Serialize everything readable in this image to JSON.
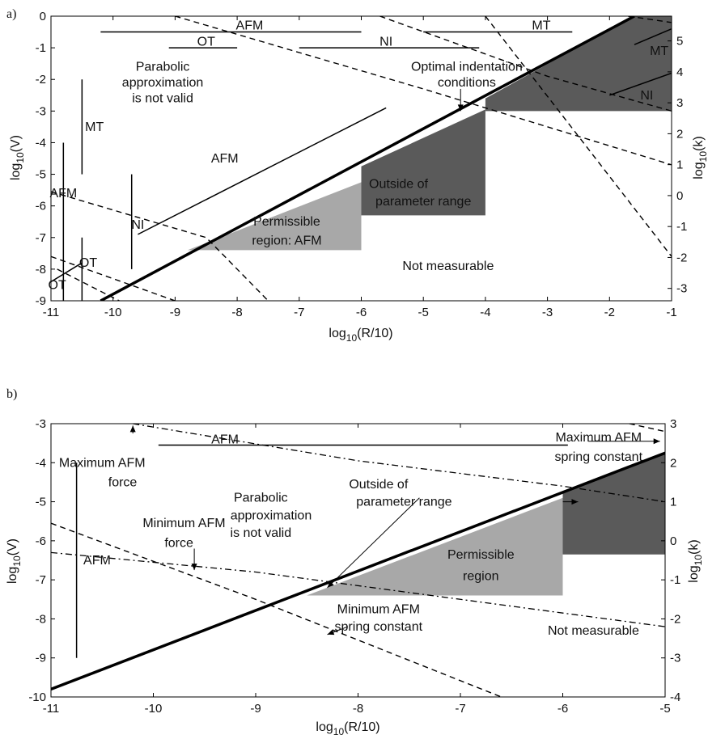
{
  "colors": {
    "axis": "#000000",
    "dark_region": "#5a5a5a",
    "light_region": "#a8a8a8",
    "line": "#000000"
  },
  "chart_data": [
    {
      "panel_label": "a)",
      "type": "line",
      "xlabel": "log10(R/10)",
      "ylabel": "log10(V)",
      "y2label": "log10(k)",
      "xlim": [
        -11,
        -1
      ],
      "ylim": [
        -9,
        0
      ],
      "y2lim": [
        -3.4,
        5.8
      ],
      "xticks": [
        -11,
        -10,
        -9,
        -8,
        -7,
        -6,
        -5,
        -4,
        -3,
        -2,
        -1
      ],
      "yticks": [
        -9,
        -8,
        -7,
        -6,
        -5,
        -4,
        -3,
        -2,
        -1,
        0
      ],
      "y2ticks": [
        -3,
        -2,
        -1,
        0,
        1,
        2,
        3,
        4,
        5
      ],
      "grid": false,
      "regions": [
        {
          "name": "Permissible region: AFM",
          "shade": "light",
          "polygon": [
            [
              -8.8,
              -7.4
            ],
            [
              -6.0,
              -7.4
            ],
            [
              -6.0,
              -5.25
            ]
          ]
        },
        {
          "name": "Outside of parameter range",
          "shade": "dark",
          "polygon": [
            [
              -6.0,
              -6.3
            ],
            [
              -4.0,
              -6.3
            ],
            [
              -4.0,
              -2.95
            ],
            [
              -6.0,
              -4.75
            ]
          ]
        },
        {
          "name": "Optimal indentation conditions",
          "shade": "dark",
          "polygon": [
            [
              -4.0,
              -3.0
            ],
            [
              -1.0,
              -3.0
            ],
            [
              -1.0,
              0.0
            ],
            [
              -1.6,
              0.0
            ],
            [
              -4.0,
              -2.6
            ]
          ]
        }
      ],
      "series": [
        {
          "style": "thick",
          "points": [
            [
              -10.2,
              -9.0
            ],
            [
              -1.6,
              0.0
            ]
          ]
        },
        {
          "style": "thin",
          "points": [
            [
              -9.6,
              -6.9
            ],
            [
              -5.6,
              -2.9
            ]
          ]
        },
        {
          "style": "dashed",
          "points": [
            [
              -11.0,
              -5.55
            ],
            [
              -8.5,
              -7.0
            ],
            [
              -7.5,
              -9.0
            ]
          ]
        },
        {
          "style": "dashed",
          "points": [
            [
              -11.0,
              -7.6
            ],
            [
              -9.0,
              -9.0
            ]
          ]
        },
        {
          "style": "dashed",
          "points": [
            [
              -9.0,
              0.0
            ],
            [
              -5.0,
              -2.3
            ],
            [
              -1.0,
              -4.7
            ]
          ]
        },
        {
          "style": "dashed",
          "points": [
            [
              -5.7,
              0.0
            ],
            [
              -3.0,
              -1.9
            ],
            [
              -1.0,
              -3.0
            ]
          ]
        },
        {
          "style": "dashed",
          "points": [
            [
              -1.7,
              0.0
            ],
            [
              -1.0,
              -0.2
            ]
          ]
        },
        {
          "style": "dashed",
          "points": [
            [
              -4.0,
              0.0
            ],
            [
              -1.0,
              -7.6
            ]
          ]
        },
        {
          "style": "dashed",
          "points": [
            [
              -10.9,
              -8.0
            ],
            [
              -9.9,
              -9.0
            ]
          ]
        },
        {
          "style": "thin",
          "points": [
            [
              -10.2,
              -0.5
            ],
            [
              -6.0,
              -0.5
            ]
          ]
        },
        {
          "style": "thin",
          "points": [
            [
              -9.1,
              -1.0
            ],
            [
              -8.0,
              -1.0
            ]
          ]
        },
        {
          "style": "thin",
          "points": [
            [
              -7.0,
              -1.0
            ],
            [
              -4.1,
              -1.0
            ]
          ]
        },
        {
          "style": "thin",
          "points": [
            [
              -5.0,
              -0.5
            ],
            [
              -2.6,
              -0.5
            ]
          ]
        },
        {
          "style": "thin",
          "points": [
            [
              -10.5,
              -2.0
            ],
            [
              -10.5,
              -5.0
            ]
          ]
        },
        {
          "style": "thin",
          "points": [
            [
              -10.8,
              -4.0
            ],
            [
              -10.8,
              -9.0
            ]
          ]
        },
        {
          "style": "thin",
          "points": [
            [
              -10.5,
              -7.0
            ],
            [
              -10.5,
              -9.0
            ]
          ]
        },
        {
          "style": "thin",
          "points": [
            [
              -9.7,
              -5.0
            ],
            [
              -9.7,
              -8.0
            ]
          ]
        },
        {
          "style": "thin",
          "points": [
            [
              -11.0,
              -8.4
            ],
            [
              -10.5,
              -7.8
            ]
          ]
        },
        {
          "style": "thin",
          "points": [
            [
              -1.6,
              -0.9
            ],
            [
              -1.0,
              -0.4
            ]
          ]
        },
        {
          "style": "thin",
          "points": [
            [
              -2.0,
              -2.5
            ],
            [
              -1.0,
              -1.8
            ]
          ]
        }
      ],
      "annotations": [
        {
          "text": "AFM",
          "x": -7.8,
          "y": -0.3
        },
        {
          "text": "OT",
          "x": -8.5,
          "y": -0.8
        },
        {
          "text": "NI",
          "x": -5.6,
          "y": -0.8
        },
        {
          "text": "MT",
          "x": -3.1,
          "y": -0.3
        },
        {
          "text": "Parabolic",
          "x": -9.2,
          "y": -1.6
        },
        {
          "text": "approximation",
          "x": -9.2,
          "y": -2.1
        },
        {
          "text": "is not valid",
          "x": -9.2,
          "y": -2.6
        },
        {
          "text": "Optimal indentation",
          "x": -4.3,
          "y": -1.6
        },
        {
          "text": "conditions",
          "x": -4.3,
          "y": -2.1
        },
        {
          "text": "MT",
          "x": -10.3,
          "y": -3.5
        },
        {
          "text": "AFM",
          "x": -8.2,
          "y": -4.5
        },
        {
          "text": "AFM",
          "x": -10.8,
          "y": -5.6
        },
        {
          "text": "Outside of",
          "x": -5.4,
          "y": -5.3
        },
        {
          "text": "parameter range",
          "x": -5.0,
          "y": -5.85
        },
        {
          "text": "Permissible",
          "x": -7.2,
          "y": -6.5
        },
        {
          "text": "region: AFM",
          "x": -7.2,
          "y": -7.1
        },
        {
          "text": "NI",
          "x": -9.6,
          "y": -6.6
        },
        {
          "text": "Not measurable",
          "x": -4.6,
          "y": -7.9
        },
        {
          "text": "OT",
          "x": -10.4,
          "y": -7.8
        },
        {
          "text": "OT",
          "x": -10.9,
          "y": -8.5
        },
        {
          "text": "MT",
          "x": -1.2,
          "y": -1.1
        },
        {
          "text": "NI",
          "x": -1.4,
          "y": -2.5
        }
      ],
      "arrows": [
        {
          "from": [
            -4.4,
            -2.3
          ],
          "to": [
            -4.4,
            -3.0
          ]
        }
      ]
    },
    {
      "panel_label": "b)",
      "type": "line",
      "xlabel": "log10(R/10)",
      "ylabel": "log10(V)",
      "y2label": "log10(k)",
      "xlim": [
        -11,
        -5
      ],
      "ylim": [
        -10,
        -3
      ],
      "y2lim": [
        -4,
        3
      ],
      "xticks": [
        -11,
        -10,
        -9,
        -8,
        -7,
        -6,
        -5
      ],
      "yticks": [
        -10,
        -9,
        -8,
        -7,
        -6,
        -5,
        -4,
        -3
      ],
      "y2ticks": [
        -4,
        -3,
        -2,
        -1,
        0,
        1,
        2,
        3
      ],
      "grid": false,
      "regions": [
        {
          "name": "Permissible region",
          "shade": "light",
          "polygon": [
            [
              -8.5,
              -7.4
            ],
            [
              -6.0,
              -7.4
            ],
            [
              -6.0,
              -4.9
            ]
          ]
        },
        {
          "name": "Outside of parameter range",
          "shade": "dark",
          "polygon": [
            [
              -6.0,
              -6.35
            ],
            [
              -5.0,
              -6.35
            ],
            [
              -5.0,
              -3.75
            ],
            [
              -6.0,
              -4.75
            ]
          ]
        }
      ],
      "series": [
        {
          "style": "thick",
          "points": [
            [
              -11.0,
              -9.8
            ],
            [
              -5.0,
              -3.75
            ]
          ]
        },
        {
          "style": "dashed",
          "points": [
            [
              -11.0,
              -5.55
            ],
            [
              -9.0,
              -7.5
            ],
            [
              -6.6,
              -10.0
            ]
          ]
        },
        {
          "style": "dashed",
          "points": [
            [
              -5.35,
              -3.0
            ],
            [
              -5.0,
              -3.2
            ]
          ]
        },
        {
          "style": "dashdot",
          "points": [
            [
              -10.2,
              -3.0
            ],
            [
              -8.0,
              -3.95
            ],
            [
              -6.0,
              -4.6
            ],
            [
              -5.0,
              -5.0
            ]
          ]
        },
        {
          "style": "dashdot",
          "points": [
            [
              -11.0,
              -6.3
            ],
            [
              -9.0,
              -6.8
            ],
            [
              -7.0,
              -7.5
            ],
            [
              -5.0,
              -8.2
            ]
          ]
        },
        {
          "style": "thin",
          "points": [
            [
              -9.95,
              -3.55
            ],
            [
              -5.95,
              -3.55
            ]
          ]
        },
        {
          "style": "thin",
          "points": [
            [
              -10.75,
              -4.0
            ],
            [
              -10.75,
              -9.0
            ]
          ]
        }
      ],
      "annotations": [
        {
          "text": "AFM",
          "x": -9.3,
          "y": -3.4
        },
        {
          "text": "Maximum AFM",
          "x": -5.65,
          "y": -3.35
        },
        {
          "text": "spring constant",
          "x": -5.65,
          "y": -3.85
        },
        {
          "text": "Maximum AFM",
          "x": -10.5,
          "y": -4.0
        },
        {
          "text": "force",
          "x": -10.3,
          "y": -4.5
        },
        {
          "text": "Outside of",
          "x": -7.8,
          "y": -4.55
        },
        {
          "text": "parameter range",
          "x": -7.55,
          "y": -5.0
        },
        {
          "text": "Parabolic",
          "x": -8.95,
          "y": -4.9
        },
        {
          "text": "approximation",
          "x": -8.85,
          "y": -5.35
        },
        {
          "text": "is not valid",
          "x": -8.95,
          "y": -5.8
        },
        {
          "text": "Minimum AFM",
          "x": -9.7,
          "y": -5.55
        },
        {
          "text": "force",
          "x": -9.75,
          "y": -6.05
        },
        {
          "text": "AFM",
          "x": -10.55,
          "y": -6.5
        },
        {
          "text": "Permissible",
          "x": -6.8,
          "y": -6.35
        },
        {
          "text": "region",
          "x": -6.8,
          "y": -6.9
        },
        {
          "text": "Minimum AFM",
          "x": -7.8,
          "y": -7.75
        },
        {
          "text": "spring constant",
          "x": -7.8,
          "y": -8.2
        },
        {
          "text": "Not measurable",
          "x": -5.7,
          "y": -8.3
        }
      ],
      "arrows": [
        {
          "from": [
            -10.2,
            -3.25
          ],
          "to": [
            -10.2,
            -3.05
          ]
        },
        {
          "from": [
            -9.6,
            -6.2
          ],
          "to": [
            -9.6,
            -6.75
          ]
        },
        {
          "from": [
            -7.4,
            -4.9
          ],
          "to": [
            -8.3,
            -7.2
          ]
        },
        {
          "from": [
            -8.1,
            -8.2
          ],
          "to": [
            -8.3,
            -8.4
          ]
        },
        {
          "from": [
            -5.75,
            -3.45
          ],
          "to": [
            -5.05,
            -3.45
          ]
        },
        {
          "from": [
            -6.0,
            -5.0
          ],
          "to": [
            -5.85,
            -5.0
          ]
        }
      ]
    }
  ]
}
